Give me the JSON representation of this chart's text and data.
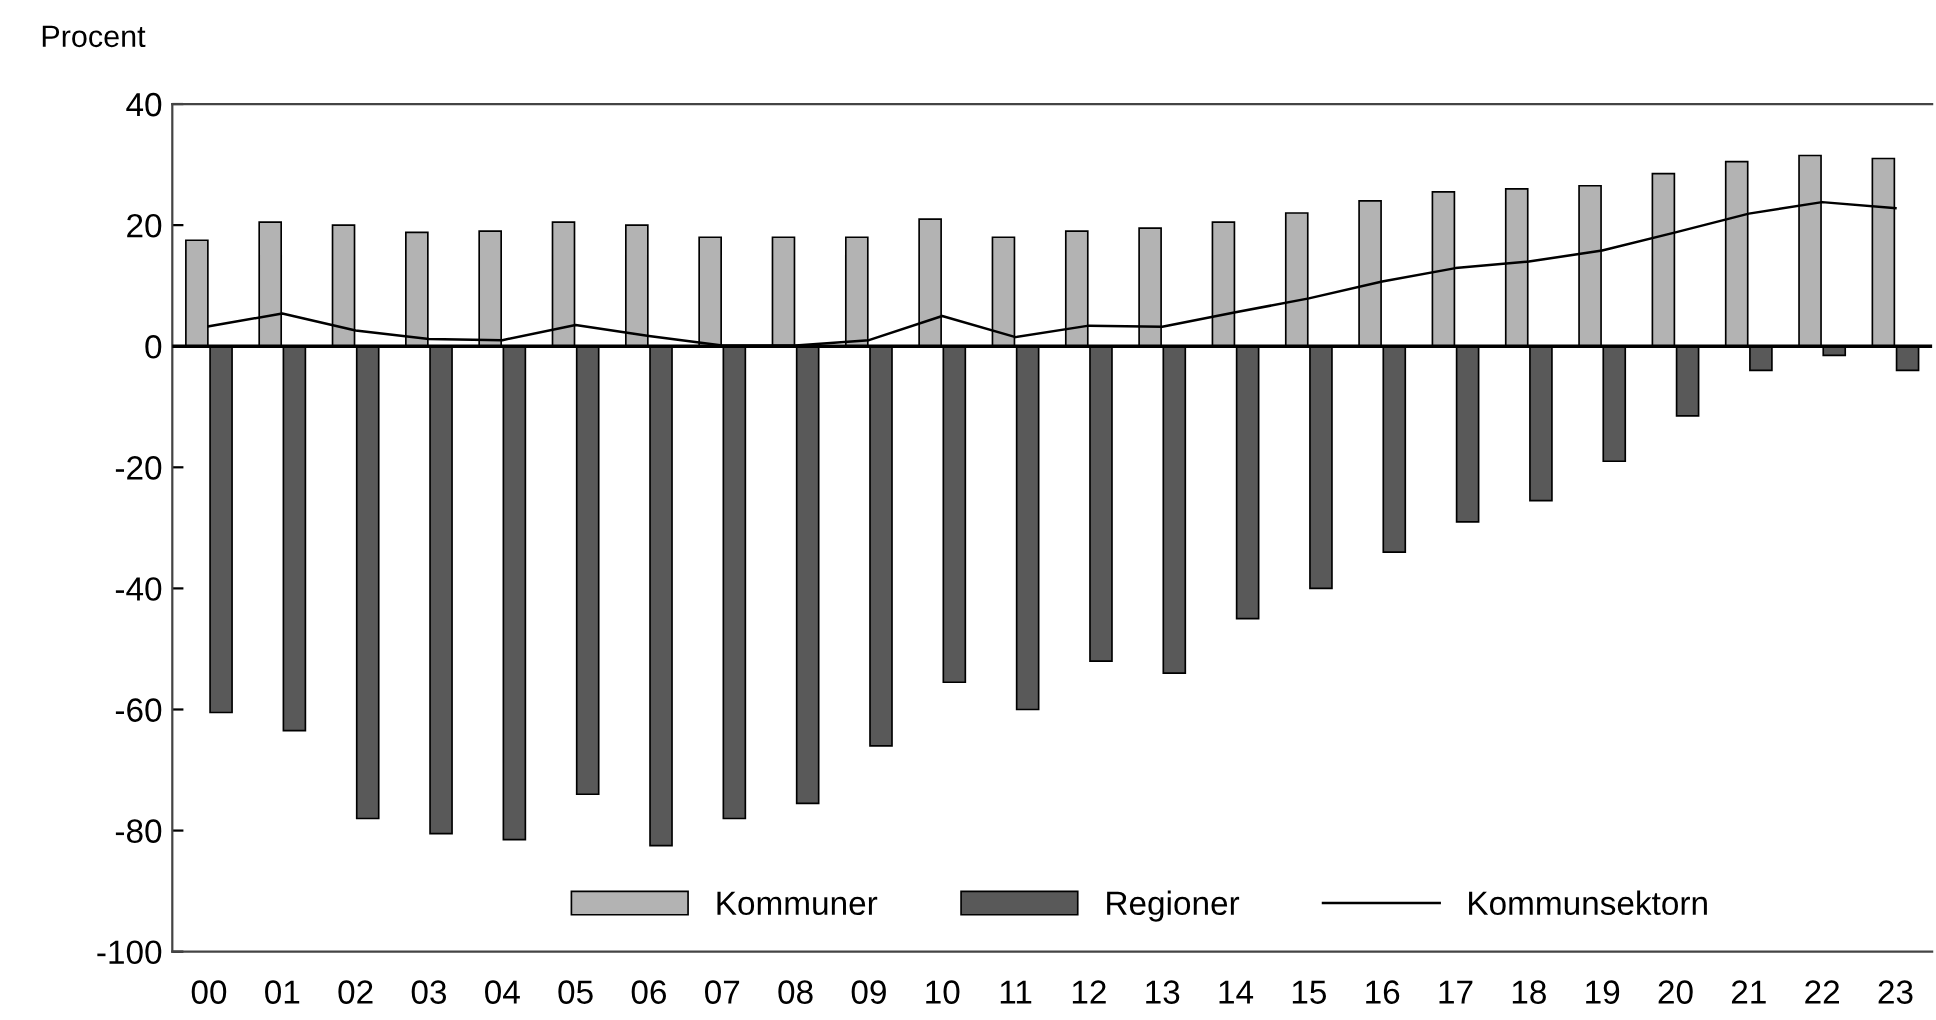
{
  "chart_data": {
    "type": "bar",
    "ylabel": "Procent",
    "categories": [
      "00",
      "01",
      "02",
      "03",
      "04",
      "05",
      "06",
      "07",
      "08",
      "09",
      "10",
      "11",
      "12",
      "13",
      "14",
      "15",
      "16",
      "17",
      "18",
      "19",
      "20",
      "21",
      "22",
      "23"
    ],
    "series": [
      {
        "name": "Kommuner",
        "color": "#b3b3b3",
        "values": [
          17.5,
          20.5,
          20,
          18.8,
          19,
          20.5,
          20,
          18,
          18,
          18,
          21,
          18,
          19,
          19.5,
          20.5,
          22,
          24,
          25.5,
          26,
          26.5,
          28.5,
          30.5,
          31.5,
          31
        ]
      },
      {
        "name": "Regioner",
        "color": "#595959",
        "values": [
          -60.5,
          -63.5,
          -78,
          -80.5,
          -81.5,
          -74,
          -82.5,
          -78,
          -75.5,
          -66,
          -55.5,
          -60,
          -52,
          -54,
          -45,
          -40,
          -34,
          -29,
          -25.5,
          -19,
          -11.5,
          -4,
          -1.5,
          -4
        ]
      },
      {
        "name": "Kommunsektorn",
        "type": "line",
        "color": "#000000",
        "values": [
          3.3,
          5.4,
          2.6,
          1.2,
          1,
          3.5,
          1.7,
          0.1,
          0.1,
          1,
          5,
          1.5,
          3.4,
          3.2,
          5.6,
          7.9,
          10.7,
          12.9,
          14,
          15.8,
          18.8,
          21.9,
          23.8,
          22.8
        ]
      }
    ],
    "ylim": [
      -100,
      40
    ],
    "yticks": [
      -100,
      -80,
      -60,
      -40,
      -20,
      0,
      20,
      40
    ],
    "ref_lines": [
      {
        "axis": "y",
        "value": 0,
        "color": "#000000"
      }
    ],
    "grid": false,
    "legend": "bottom",
    "marker": "none",
    "line_style": "solid"
  }
}
